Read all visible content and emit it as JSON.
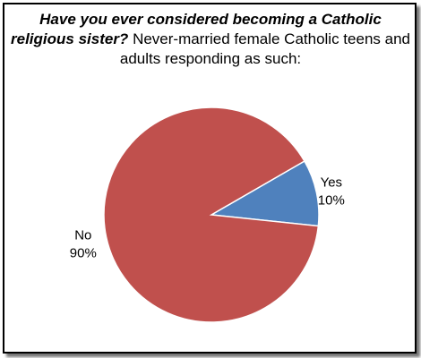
{
  "chart_data": {
    "type": "pie",
    "title_emphasis": "Have you ever considered becoming a Catholic religious sister?",
    "title_rest": "Never-married female Catholic teens and adults responding as such:",
    "slices": [
      {
        "label": "Yes",
        "value": 10,
        "value_text": "10%",
        "color": "#4F81BD"
      },
      {
        "label": "No",
        "value": 90,
        "value_text": "90%",
        "color": "#C0504D"
      }
    ],
    "legend": "none"
  }
}
